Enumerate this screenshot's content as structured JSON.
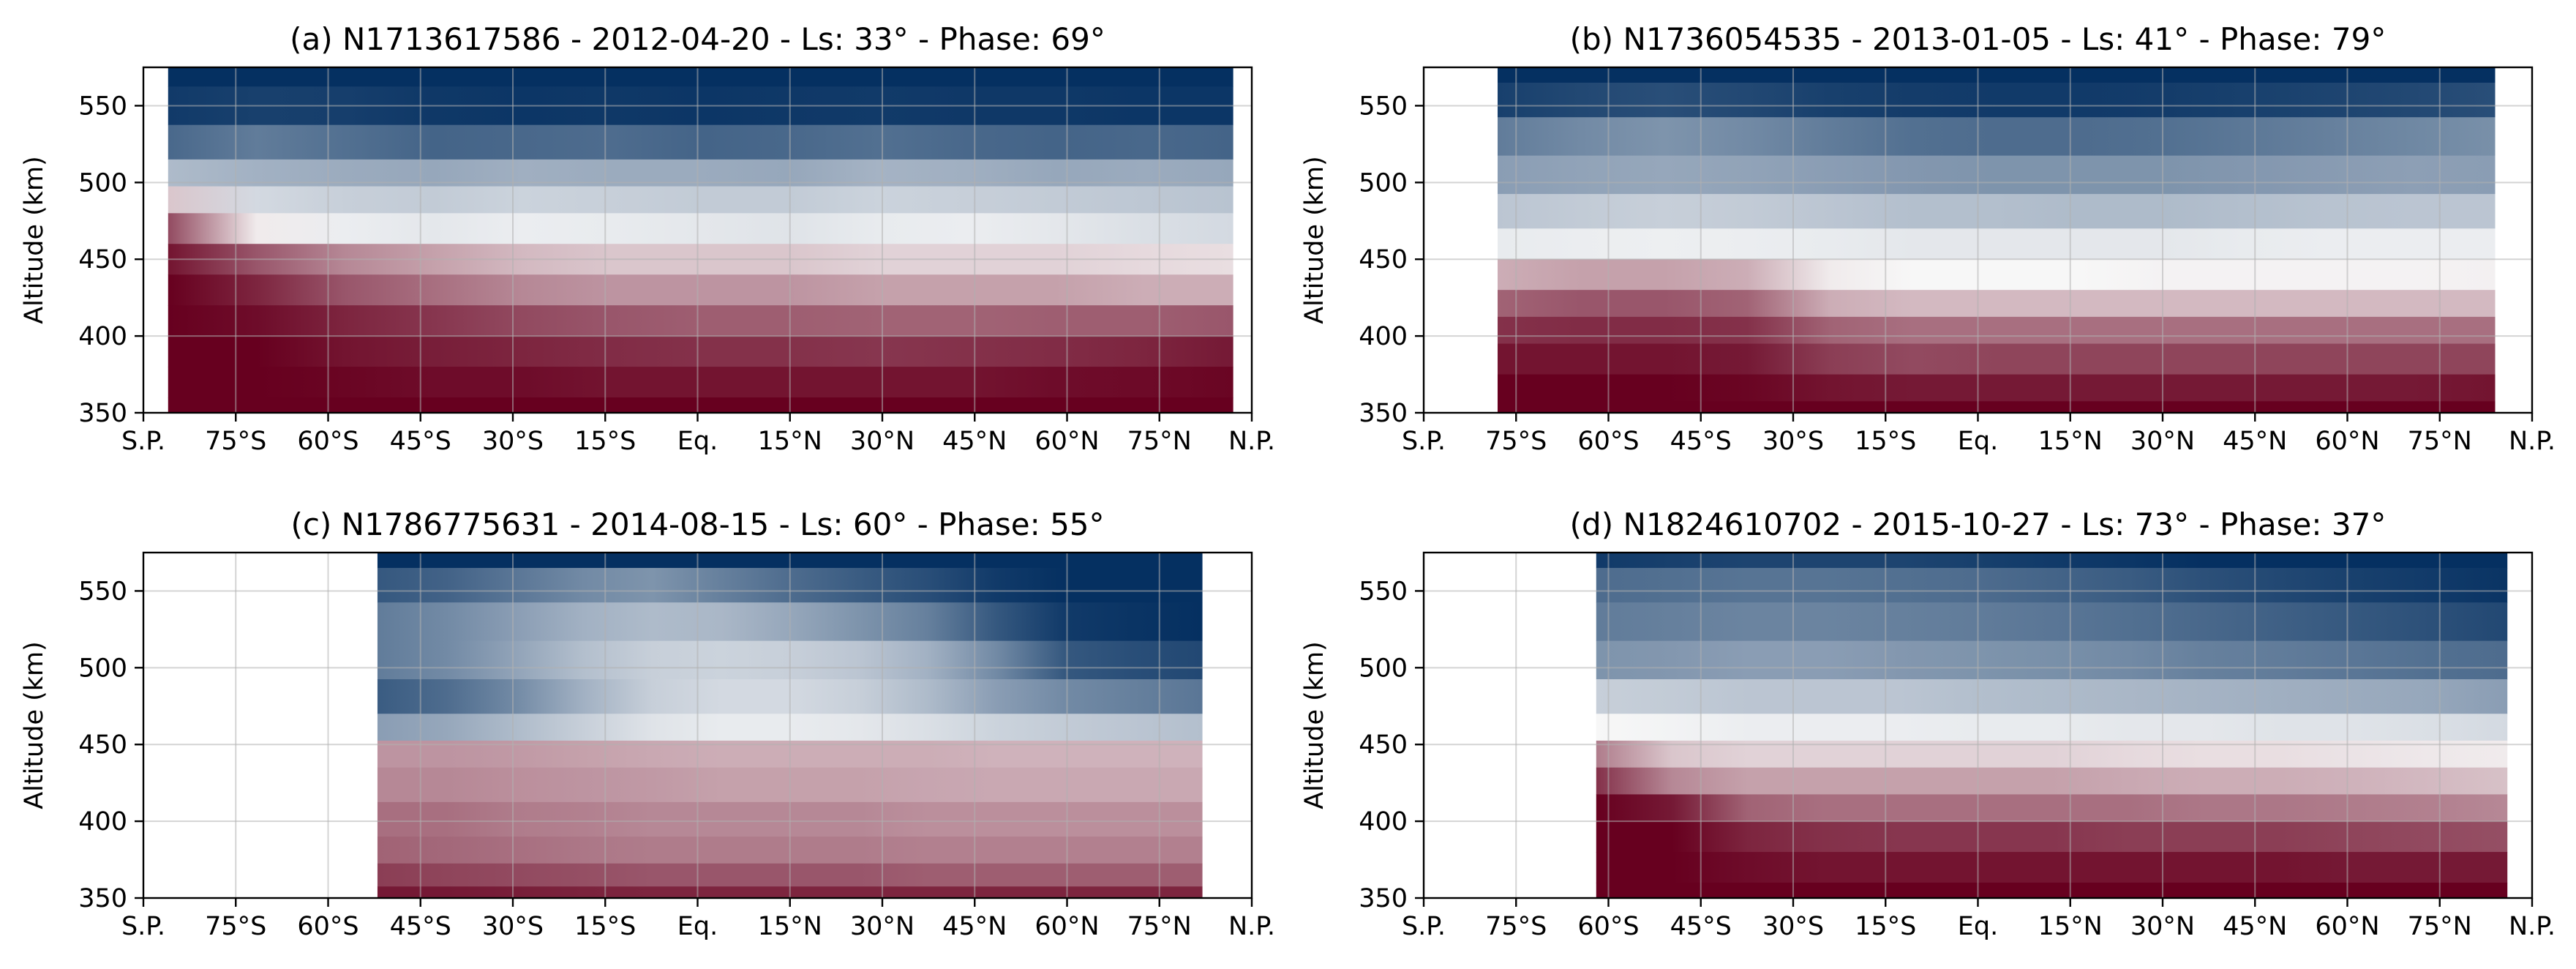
{
  "figure": {
    "background": "#ffffff",
    "colormap": {
      "name": "RdBu",
      "low": "#67001f",
      "mid": "#f7f7f7",
      "high": "#053061"
    }
  },
  "chart_data": [
    {
      "type": "heatmap",
      "title": "(a) N1713617586 - 2012-04-20 - Ls: 33° - Phase: 69°",
      "xlabel": "",
      "ylabel": "Altitude (km)",
      "xlim": [
        -90,
        90
      ],
      "ylim": [
        350,
        575
      ],
      "x_ticks": [
        -90,
        -75,
        -60,
        -45,
        -30,
        -15,
        0,
        15,
        30,
        45,
        60,
        75,
        90
      ],
      "x_tick_labels": [
        "S.P.",
        "75°S",
        "60°S",
        "45°S",
        "30°S",
        "15°S",
        "Eq.",
        "15°N",
        "30°N",
        "45°N",
        "60°N",
        "75°N",
        "N.P."
      ],
      "y_ticks": [
        350,
        400,
        450,
        500,
        550
      ],
      "y_tick_labels": [
        "350",
        "400",
        "450",
        "500",
        "550"
      ],
      "grid": true,
      "data_lon_range": [
        -86,
        87
      ],
      "rows": [
        {
          "alt": 575,
          "values": [
            1.0,
            1.0,
            1.0,
            1.0,
            1.0,
            1.0,
            1.0,
            1.0,
            1.0,
            1.0,
            1.0,
            1.0,
            1.0
          ]
        },
        {
          "alt": 550,
          "values": [
            0.95,
            0.92,
            0.93,
            0.96,
            0.97,
            0.96,
            0.97,
            0.96,
            0.95,
            0.96,
            0.96,
            0.97,
            0.97
          ]
        },
        {
          "alt": 525,
          "values": [
            0.72,
            0.62,
            0.68,
            0.74,
            0.72,
            0.7,
            0.74,
            0.72,
            0.68,
            0.72,
            0.74,
            0.72,
            0.74
          ]
        },
        {
          "alt": 505,
          "values": [
            0.3,
            0.35,
            0.38,
            0.4,
            0.36,
            0.38,
            0.38,
            0.4,
            0.34,
            0.36,
            0.4,
            0.38,
            0.4
          ]
        },
        {
          "alt": 490,
          "values": [
            -0.2,
            0.15,
            0.2,
            0.22,
            0.18,
            0.2,
            0.22,
            0.22,
            0.18,
            0.2,
            0.22,
            0.24,
            0.26
          ]
        },
        {
          "alt": 470,
          "values": [
            -0.7,
            -0.05,
            0.05,
            0.08,
            0.05,
            0.06,
            0.08,
            0.1,
            0.06,
            0.05,
            0.08,
            0.12,
            0.15
          ]
        },
        {
          "alt": 450,
          "values": [
            -0.92,
            -0.65,
            -0.45,
            -0.35,
            -0.25,
            -0.2,
            -0.2,
            -0.2,
            -0.15,
            -0.15,
            -0.15,
            -0.12,
            -0.1
          ]
        },
        {
          "alt": 430,
          "values": [
            -1.0,
            -0.85,
            -0.65,
            -0.55,
            -0.45,
            -0.4,
            -0.4,
            -0.4,
            -0.35,
            -0.35,
            -0.35,
            -0.3,
            -0.3
          ]
        },
        {
          "alt": 410,
          "values": [
            -1.0,
            -0.95,
            -0.85,
            -0.78,
            -0.7,
            -0.65,
            -0.62,
            -0.62,
            -0.6,
            -0.6,
            -0.62,
            -0.62,
            -0.65
          ]
        },
        {
          "alt": 390,
          "values": [
            -1.0,
            -1.0,
            -0.92,
            -0.88,
            -0.85,
            -0.82,
            -0.8,
            -0.8,
            -0.78,
            -0.8,
            -0.82,
            -0.85,
            -0.9
          ]
        },
        {
          "alt": 370,
          "values": [
            -1.0,
            -1.0,
            -0.98,
            -0.95,
            -0.95,
            -0.92,
            -0.92,
            -0.92,
            -0.92,
            -0.92,
            -0.95,
            -0.96,
            -0.98
          ]
        },
        {
          "alt": 350,
          "values": [
            -1.0,
            -1.0,
            -1.0,
            -1.0,
            -1.0,
            -1.0,
            -1.0,
            -1.0,
            -1.0,
            -1.0,
            -1.0,
            -1.0,
            -1.0
          ]
        }
      ]
    },
    {
      "type": "heatmap",
      "title": "(b) N1736054535 - 2013-01-05 - Ls: 41° - Phase: 79°",
      "xlabel": "",
      "ylabel": "Altitude (km)",
      "xlim": [
        -90,
        90
      ],
      "ylim": [
        350,
        575
      ],
      "x_ticks": [
        -90,
        -75,
        -60,
        -45,
        -30,
        -15,
        0,
        15,
        30,
        45,
        60,
        75,
        90
      ],
      "x_tick_labels": [
        "S.P.",
        "75°S",
        "60°S",
        "45°S",
        "30°S",
        "15°S",
        "Eq.",
        "15°N",
        "30°N",
        "45°N",
        "60°N",
        "75°N",
        "N.P."
      ],
      "y_ticks": [
        350,
        400,
        450,
        500,
        550
      ],
      "y_tick_labels": [
        "350",
        "400",
        "450",
        "500",
        "550"
      ],
      "grid": true,
      "data_lon_range": [
        -78,
        84
      ],
      "rows": [
        {
          "alt": 575,
          "values": [
            1.0,
            1.0,
            1.0,
            1.0,
            1.0,
            1.0,
            1.0,
            1.0,
            1.0,
            1.0,
            1.0,
            1.0,
            1.0
          ]
        },
        {
          "alt": 555,
          "values": [
            0.92,
            0.88,
            0.85,
            0.88,
            0.92,
            0.94,
            0.95,
            0.95,
            0.94,
            0.92,
            0.9,
            0.88,
            0.85
          ]
        },
        {
          "alt": 530,
          "values": [
            0.62,
            0.55,
            0.5,
            0.55,
            0.62,
            0.68,
            0.7,
            0.7,
            0.68,
            0.64,
            0.6,
            0.56,
            0.52
          ]
        },
        {
          "alt": 505,
          "values": [
            0.45,
            0.42,
            0.4,
            0.42,
            0.45,
            0.48,
            0.5,
            0.5,
            0.5,
            0.48,
            0.46,
            0.44,
            0.45
          ]
        },
        {
          "alt": 480,
          "values": [
            0.25,
            0.22,
            0.2,
            0.22,
            0.25,
            0.28,
            0.28,
            0.3,
            0.3,
            0.28,
            0.26,
            0.25,
            0.25
          ]
        },
        {
          "alt": 460,
          "values": [
            0.06,
            0.05,
            0.04,
            0.05,
            0.06,
            0.08,
            0.08,
            0.08,
            0.08,
            0.06,
            0.05,
            0.05,
            0.05
          ]
        },
        {
          "alt": 440,
          "values": [
            -0.3,
            -0.35,
            -0.35,
            -0.3,
            -0.05,
            0.0,
            0.0,
            0.0,
            -0.02,
            -0.02,
            -0.02,
            -0.02,
            -0.03
          ]
        },
        {
          "alt": 420,
          "values": [
            -0.6,
            -0.65,
            -0.65,
            -0.6,
            -0.3,
            -0.25,
            -0.25,
            -0.25,
            -0.25,
            -0.25,
            -0.25,
            -0.25,
            -0.25
          ]
        },
        {
          "alt": 405,
          "values": [
            -0.8,
            -0.82,
            -0.82,
            -0.8,
            -0.6,
            -0.55,
            -0.55,
            -0.55,
            -0.55,
            -0.55,
            -0.55,
            -0.55,
            -0.55
          ]
        },
        {
          "alt": 385,
          "values": [
            -0.92,
            -0.92,
            -0.92,
            -0.9,
            -0.75,
            -0.7,
            -0.72,
            -0.72,
            -0.72,
            -0.72,
            -0.72,
            -0.72,
            -0.72
          ]
        },
        {
          "alt": 365,
          "values": [
            -1.0,
            -1.0,
            -1.0,
            -0.98,
            -0.92,
            -0.9,
            -0.9,
            -0.9,
            -0.9,
            -0.9,
            -0.9,
            -0.9,
            -0.92
          ]
        },
        {
          "alt": 350,
          "values": [
            -1.0,
            -1.0,
            -1.0,
            -1.0,
            -1.0,
            -1.0,
            -1.0,
            -1.0,
            -1.0,
            -1.0,
            -1.0,
            -1.0,
            -1.0
          ]
        }
      ]
    },
    {
      "type": "heatmap",
      "title": "(c) N1786775631 - 2014-08-15 - Ls: 60° - Phase: 55°",
      "xlabel": "",
      "ylabel": "Altitude (km)",
      "xlim": [
        -90,
        90
      ],
      "ylim": [
        350,
        575
      ],
      "x_ticks": [
        -90,
        -75,
        -60,
        -45,
        -30,
        -15,
        0,
        15,
        30,
        45,
        60,
        75,
        90
      ],
      "x_tick_labels": [
        "S.P.",
        "75°S",
        "60°S",
        "45°S",
        "30°S",
        "15°S",
        "Eq.",
        "15°N",
        "30°N",
        "45°N",
        "60°N",
        "75°N",
        "N.P."
      ],
      "y_ticks": [
        350,
        400,
        450,
        500,
        550
      ],
      "y_tick_labels": [
        "350",
        "400",
        "450",
        "500",
        "550"
      ],
      "grid": true,
      "data_lon_range": [
        -52,
        82
      ],
      "rows": [
        {
          "alt": 575,
          "values": [
            1.0,
            1.0,
            1.0,
            1.0,
            1.0,
            1.0,
            1.0,
            1.0,
            1.0,
            1.0,
            1.0,
            1.0,
            1.0
          ]
        },
        {
          "alt": 555,
          "values": [
            0.8,
            0.75,
            0.65,
            0.55,
            0.5,
            0.6,
            0.7,
            0.78,
            0.85,
            0.95,
            1.0,
            1.0,
            1.0
          ]
        },
        {
          "alt": 530,
          "values": [
            0.62,
            0.55,
            0.45,
            0.35,
            0.3,
            0.32,
            0.4,
            0.5,
            0.6,
            0.8,
            0.95,
            0.98,
            1.0
          ]
        },
        {
          "alt": 505,
          "values": [
            0.62,
            0.55,
            0.42,
            0.28,
            0.2,
            0.18,
            0.2,
            0.25,
            0.35,
            0.55,
            0.8,
            0.85,
            0.88
          ]
        },
        {
          "alt": 480,
          "values": [
            0.78,
            0.7,
            0.55,
            0.35,
            0.2,
            0.15,
            0.15,
            0.2,
            0.3,
            0.45,
            0.55,
            0.6,
            0.65
          ]
        },
        {
          "alt": 460,
          "values": [
            0.45,
            0.4,
            0.3,
            0.2,
            0.1,
            0.06,
            0.06,
            0.08,
            0.12,
            0.18,
            0.22,
            0.25,
            0.28
          ]
        },
        {
          "alt": 445,
          "values": [
            -0.4,
            -0.4,
            -0.38,
            -0.35,
            -0.32,
            -0.3,
            -0.3,
            -0.3,
            -0.3,
            -0.28,
            -0.28,
            -0.28,
            -0.28
          ]
        },
        {
          "alt": 425,
          "values": [
            -0.45,
            -0.45,
            -0.42,
            -0.4,
            -0.38,
            -0.35,
            -0.35,
            -0.35,
            -0.33,
            -0.32,
            -0.32,
            -0.32,
            -0.32
          ]
        },
        {
          "alt": 400,
          "values": [
            -0.55,
            -0.55,
            -0.5,
            -0.48,
            -0.45,
            -0.45,
            -0.45,
            -0.45,
            -0.42,
            -0.42,
            -0.42,
            -0.42,
            -0.42
          ]
        },
        {
          "alt": 380,
          "values": [
            -0.6,
            -0.58,
            -0.55,
            -0.52,
            -0.5,
            -0.5,
            -0.5,
            -0.5,
            -0.48,
            -0.48,
            -0.48,
            -0.48,
            -0.48
          ]
        },
        {
          "alt": 365,
          "values": [
            -0.75,
            -0.72,
            -0.7,
            -0.68,
            -0.65,
            -0.65,
            -0.65,
            -0.65,
            -0.62,
            -0.62,
            -0.62,
            -0.62,
            -0.62
          ]
        },
        {
          "alt": 350,
          "values": [
            -0.9,
            -0.9,
            -0.88,
            -0.86,
            -0.85,
            -0.85,
            -0.85,
            -0.85,
            -0.85,
            -0.85,
            -0.85,
            -0.85,
            -0.85
          ]
        }
      ]
    },
    {
      "type": "heatmap",
      "title": "(d) N1824610702 - 2015-10-27 - Ls: 73° - Phase: 37°",
      "xlabel": "",
      "ylabel": "Altitude (km)",
      "xlim": [
        -90,
        90
      ],
      "ylim": [
        350,
        575
      ],
      "x_ticks": [
        -90,
        -75,
        -60,
        -45,
        -30,
        -15,
        0,
        15,
        30,
        45,
        60,
        75,
        90
      ],
      "x_tick_labels": [
        "S.P.",
        "75°S",
        "60°S",
        "45°S",
        "30°S",
        "15°S",
        "Eq.",
        "15°N",
        "30°N",
        "45°N",
        "60°N",
        "75°N",
        "N.P."
      ],
      "y_ticks": [
        350,
        400,
        450,
        500,
        550
      ],
      "y_tick_labels": [
        "350",
        "400",
        "450",
        "500",
        "550"
      ],
      "grid": true,
      "data_lon_range": [
        -62,
        86
      ],
      "rows": [
        {
          "alt": 575,
          "values": [
            0.95,
            0.92,
            0.9,
            0.9,
            0.9,
            0.92,
            0.95,
            0.97,
            1.0,
            1.0,
            1.0,
            1.0,
            1.0
          ]
        },
        {
          "alt": 555,
          "values": [
            0.7,
            0.68,
            0.66,
            0.66,
            0.68,
            0.7,
            0.74,
            0.78,
            0.84,
            0.88,
            0.92,
            0.95,
            0.98
          ]
        },
        {
          "alt": 530,
          "values": [
            0.62,
            0.6,
            0.58,
            0.58,
            0.6,
            0.62,
            0.65,
            0.68,
            0.72,
            0.76,
            0.8,
            0.84,
            0.88
          ]
        },
        {
          "alt": 505,
          "values": [
            0.5,
            0.48,
            0.45,
            0.45,
            0.48,
            0.5,
            0.52,
            0.55,
            0.6,
            0.62,
            0.65,
            0.68,
            0.7
          ]
        },
        {
          "alt": 480,
          "values": [
            0.2,
            0.22,
            0.25,
            0.25,
            0.25,
            0.28,
            0.3,
            0.32,
            0.34,
            0.36,
            0.38,
            0.4,
            0.45
          ]
        },
        {
          "alt": 460,
          "values": [
            0.0,
            0.02,
            0.05,
            0.05,
            0.05,
            0.06,
            0.06,
            0.08,
            0.08,
            0.1,
            0.1,
            0.12,
            0.15
          ]
        },
        {
          "alt": 445,
          "values": [
            -0.5,
            -0.2,
            -0.15,
            -0.15,
            -0.15,
            -0.15,
            -0.15,
            -0.12,
            -0.1,
            -0.1,
            -0.08,
            -0.06,
            -0.05
          ]
        },
        {
          "alt": 425,
          "values": [
            -0.8,
            -0.45,
            -0.35,
            -0.35,
            -0.35,
            -0.35,
            -0.35,
            -0.32,
            -0.3,
            -0.3,
            -0.28,
            -0.25,
            -0.22
          ]
        },
        {
          "alt": 410,
          "values": [
            -1.0,
            -0.9,
            -0.6,
            -0.55,
            -0.55,
            -0.55,
            -0.55,
            -0.55,
            -0.52,
            -0.52,
            -0.5,
            -0.48,
            -0.45
          ]
        },
        {
          "alt": 390,
          "values": [
            -1.0,
            -1.0,
            -0.85,
            -0.8,
            -0.78,
            -0.78,
            -0.78,
            -0.75,
            -0.75,
            -0.75,
            -0.72,
            -0.7,
            -0.68
          ]
        },
        {
          "alt": 370,
          "values": [
            -1.0,
            -1.0,
            -0.95,
            -0.92,
            -0.92,
            -0.92,
            -0.92,
            -0.92,
            -0.92,
            -0.92,
            -0.9,
            -0.9,
            -0.9
          ]
        },
        {
          "alt": 350,
          "values": [
            -1.0,
            -1.0,
            -1.0,
            -1.0,
            -1.0,
            -1.0,
            -1.0,
            -1.0,
            -1.0,
            -1.0,
            -1.0,
            -1.0,
            -1.0
          ]
        }
      ]
    }
  ]
}
